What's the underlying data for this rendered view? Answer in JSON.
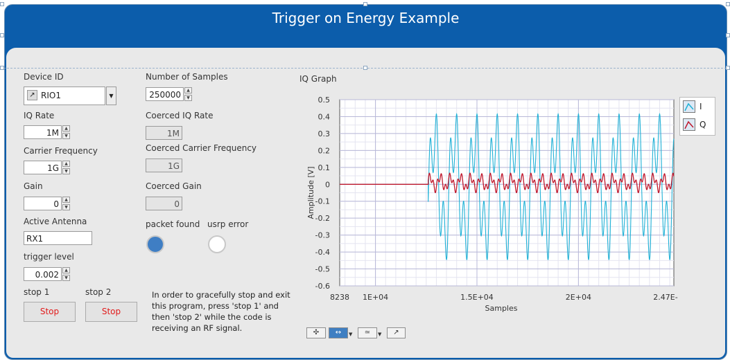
{
  "window": {
    "title": "Trigger on Energy Example"
  },
  "device_id": {
    "label": "Device ID",
    "value": "RIO1"
  },
  "iq_rate": {
    "label": "IQ Rate",
    "value": "1M"
  },
  "carrier_frequency": {
    "label": "Carrier Frequency",
    "value": "1G"
  },
  "gain": {
    "label": "Gain",
    "value": "0"
  },
  "active_antenna": {
    "label": "Active Antenna",
    "value": "RX1"
  },
  "trigger_level": {
    "label": "trigger level",
    "value": "0.002"
  },
  "stop1": {
    "label": "stop 1",
    "button": "Stop"
  },
  "stop2": {
    "label": "stop 2",
    "button": "Stop"
  },
  "num_samples": {
    "label": "Number of Samples",
    "value": "250000"
  },
  "coerced_iq_rate": {
    "label": "Coerced IQ Rate",
    "value": "1M"
  },
  "coerced_carrier_frequency": {
    "label": "Coerced Carrier Frequency",
    "value": "1G"
  },
  "coerced_gain": {
    "label": "Coerced Gain",
    "value": "0"
  },
  "packet_found": {
    "label": "packet found",
    "state": true,
    "color": "#3f7ec4"
  },
  "usrp_error": {
    "label": "usrp error",
    "state": false,
    "color": "#ffffff"
  },
  "instructions": "In order to gracefully stop and exit this program, press 'stop 1' and then 'stop 2' while the code is receiving an RF signal.",
  "graph": {
    "label": "IQ Graph",
    "toolbar": [
      "cursor-move-tool",
      "pan-tool",
      "zoom-tool",
      "autoscale-tool"
    ]
  },
  "chart_data": {
    "type": "line",
    "title": "",
    "xlabel": "Samples",
    "ylabel": "Amplitude [V]",
    "xlim": [
      8238,
      24700
    ],
    "ylim": [
      -0.6,
      0.5
    ],
    "x_ticks": [
      "8238",
      "1E+04",
      "1.5E+04",
      "2E+04",
      "2.47E-"
    ],
    "x_tick_values": [
      8238,
      10000,
      15000,
      20000,
      24700
    ],
    "y_ticks": [
      "0.5",
      "0.4",
      "0.3",
      "0.2",
      "0.1",
      "0",
      "-0.1",
      "-0.2",
      "-0.3",
      "-0.4",
      "-0.5",
      "-0.6"
    ],
    "y_tick_values": [
      0.5,
      0.4,
      0.3,
      0.2,
      0.1,
      0,
      -0.1,
      -0.2,
      -0.3,
      -0.4,
      -0.5,
      -0.6
    ],
    "grid": true,
    "legend": "right",
    "series": [
      {
        "name": "I",
        "color": "#1fb1d6",
        "signal_start": 12600,
        "amplitude_max": 0.47,
        "amplitude_min": -0.5,
        "baseline": 0
      },
      {
        "name": "Q",
        "color": "#c0182c",
        "signal_start": 12600,
        "amplitude_max": 0.07,
        "amplitude_min": -0.05,
        "baseline": 0
      }
    ]
  }
}
